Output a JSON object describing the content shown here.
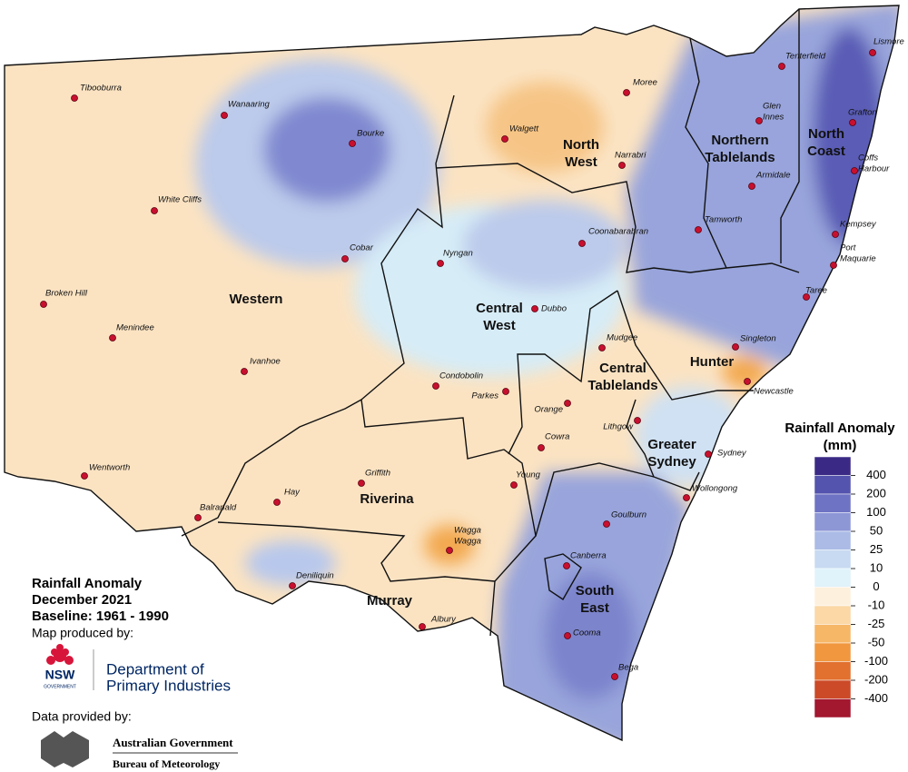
{
  "map": {
    "regions": [
      {
        "name": [
          "Western"
        ]
      },
      {
        "name": [
          "North",
          "West"
        ]
      },
      {
        "name": [
          "Northern",
          "Tablelands"
        ]
      },
      {
        "name": [
          "North",
          "Coast"
        ]
      },
      {
        "name": [
          "Central",
          "West"
        ]
      },
      {
        "name": [
          "Central",
          "Tablelands"
        ]
      },
      {
        "name": [
          "Hunter"
        ]
      },
      {
        "name": [
          "Greater",
          "Sydney"
        ]
      },
      {
        "name": [
          "Riverina"
        ]
      },
      {
        "name": [
          "Murray"
        ]
      },
      {
        "name": [
          "South",
          "East"
        ]
      }
    ],
    "towns": [
      {
        "name": [
          "Tibooburra"
        ]
      },
      {
        "name": [
          "Wanaaring"
        ]
      },
      {
        "name": [
          "Bourke"
        ]
      },
      {
        "name": [
          "Walgett"
        ]
      },
      {
        "name": [
          "Moree"
        ]
      },
      {
        "name": [
          "Tenterfield"
        ]
      },
      {
        "name": [
          "Lismore"
        ]
      },
      {
        "name": [
          "Glen",
          "Innes"
        ]
      },
      {
        "name": [
          "Grafton"
        ]
      },
      {
        "name": [
          "Narrabri"
        ]
      },
      {
        "name": [
          "Coffs",
          "Harbour"
        ]
      },
      {
        "name": [
          "Armidale"
        ]
      },
      {
        "name": [
          "White Cliffs"
        ]
      },
      {
        "name": [
          "Coonabarabran"
        ]
      },
      {
        "name": [
          "Tamworth"
        ]
      },
      {
        "name": [
          "Kempsey"
        ]
      },
      {
        "name": [
          "Port",
          "Maquarie"
        ]
      },
      {
        "name": [
          "Nyngan"
        ]
      },
      {
        "name": [
          "Cobar"
        ]
      },
      {
        "name": [
          "Broken Hill"
        ]
      },
      {
        "name": [
          "Menindee"
        ]
      },
      {
        "name": [
          "Dubbo"
        ]
      },
      {
        "name": [
          "Taree"
        ]
      },
      {
        "name": [
          "Mudgee"
        ]
      },
      {
        "name": [
          "Singleton"
        ]
      },
      {
        "name": [
          "Ivanhoe"
        ]
      },
      {
        "name": [
          "Condobolin"
        ]
      },
      {
        "name": [
          "Parkes"
        ]
      },
      {
        "name": [
          "Orange"
        ]
      },
      {
        "name": [
          "Newcastle"
        ]
      },
      {
        "name": [
          "Lithgow"
        ]
      },
      {
        "name": [
          "Cowra"
        ]
      },
      {
        "name": [
          "Sydney"
        ]
      },
      {
        "name": [
          "Wentworth"
        ]
      },
      {
        "name": [
          "Griffith"
        ]
      },
      {
        "name": [
          "Young"
        ]
      },
      {
        "name": [
          "Hay"
        ]
      },
      {
        "name": [
          "Balranald"
        ]
      },
      {
        "name": [
          "Wollongong"
        ]
      },
      {
        "name": [
          "Goulburn"
        ]
      },
      {
        "name": [
          "Wagga",
          "Wagga"
        ]
      },
      {
        "name": [
          "Canberra"
        ]
      },
      {
        "name": [
          "Deniliquin"
        ]
      },
      {
        "name": [
          "Albury"
        ]
      },
      {
        "name": [
          "Cooma"
        ]
      },
      {
        "name": [
          "Bega"
        ]
      }
    ]
  },
  "legend": {
    "title": [
      "Rainfall Anomaly",
      "(mm)"
    ],
    "ticks": [
      400,
      200,
      100,
      50,
      25,
      10,
      0,
      -10,
      -25,
      -50,
      -100,
      -200,
      -400
    ],
    "colors": [
      "#3b2a85",
      "#5453ad",
      "#6f73c4",
      "#8d97d6",
      "#abbbe6",
      "#c8daf1",
      "#e0f2fa",
      "#fdf1dd",
      "#fbd8a6",
      "#f6b767",
      "#f0973f",
      "#e2702f",
      "#cc4a28",
      "#a3172f"
    ]
  },
  "caption": {
    "lines": [
      "Rainfall Anomaly",
      "December 2021",
      "Baseline: 1961 - 1990"
    ],
    "produced_by": "Map produced by:",
    "nsw": "NSW",
    "government": "GOVERNMENT",
    "department": [
      "Department of",
      "Primary Industries"
    ],
    "data_by": "Data provided by:",
    "bom": [
      "Australian Government",
      "Bureau of Meteorology"
    ]
  }
}
